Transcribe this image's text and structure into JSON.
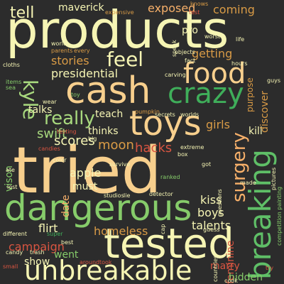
{
  "palette": {
    "cream": "#f6f5b4",
    "orange": "#f7b06a",
    "green": "#5fbf67",
    "red": "#d95541",
    "lime": "#a8d97e"
  },
  "words": [
    {
      "text": "products",
      "color": "#f6f5b4",
      "size": 72
    },
    {
      "text": "tried",
      "color": "#f7cf8d",
      "size": 90
    },
    {
      "text": "tested",
      "color": "#f6f5b4",
      "size": 58
    },
    {
      "text": "dangerous",
      "color": "#86cc6a",
      "size": 50
    },
    {
      "text": "cash",
      "color": "#f7cf8d",
      "size": 52
    },
    {
      "text": "unbreakable",
      "color": "#f6f5b4",
      "size": 38
    },
    {
      "text": "toys",
      "color": "#f7cf8d",
      "size": 48
    },
    {
      "text": "crazy",
      "color": "#3fae5a",
      "size": 40
    },
    {
      "text": "food",
      "color": "#f7cf8d",
      "size": 40
    },
    {
      "text": "breaking",
      "color": "#5fbf67",
      "size": 42
    },
    {
      "text": "feel",
      "color": "#f6f5b4",
      "size": 28
    },
    {
      "text": "surgery",
      "color": "#f7b06a",
      "size": 26
    },
    {
      "text": "really",
      "color": "#a8d97e",
      "size": 26
    },
    {
      "text": "kyle",
      "color": "#a8d97e",
      "size": 28
    },
    {
      "text": "tell",
      "color": "#f6f5b4",
      "size": 22
    },
    {
      "text": "hacks",
      "color": "#d95541",
      "size": 18
    },
    {
      "text": "moon",
      "color": "#d99b46",
      "size": 18
    },
    {
      "text": "scores",
      "color": "#f6f5b4",
      "size": 18
    },
    {
      "text": "swift",
      "color": "#a8d97e",
      "size": 18
    },
    {
      "text": "apple",
      "color": "#f6f5b4",
      "size": 16
    },
    {
      "text": "kiss",
      "color": "#f6f5b4",
      "size": 16
    },
    {
      "text": "boys",
      "color": "#f6f5b4",
      "size": 16
    },
    {
      "text": "presidential",
      "color": "#f6f5b4",
      "size": 16
    },
    {
      "text": "stories",
      "color": "#d99b46",
      "size": 16
    },
    {
      "text": "getting",
      "color": "#d99b46",
      "size": 16
    },
    {
      "text": "exposed",
      "color": "#f7b06a",
      "size": 16
    },
    {
      "text": "coming",
      "color": "#d99b46",
      "size": 16
    },
    {
      "text": "maverick",
      "color": "#f6f5b4",
      "size": 14
    },
    {
      "text": "thinks",
      "color": "#f6f5b4",
      "size": 14
    },
    {
      "text": "teach",
      "color": "#f6f5b4",
      "size": 14
    },
    {
      "text": "girls",
      "color": "#d99b46",
      "size": 16
    },
    {
      "text": "talks",
      "color": "#f6f5b4",
      "size": 14
    },
    {
      "text": "must",
      "color": "#f6f5b4",
      "size": 14
    },
    {
      "text": "date",
      "color": "#f7b06a",
      "size": 14
    },
    {
      "text": "homeless",
      "color": "#d99b46",
      "size": 16
    },
    {
      "text": "flirt",
      "color": "#f6f5b4",
      "size": 16
    },
    {
      "text": "talents",
      "color": "#f6f5b4",
      "size": 16
    },
    {
      "text": "feminine",
      "color": "#d95541",
      "size": 14
    },
    {
      "text": "campaign",
      "color": "#d95541",
      "size": 16
    },
    {
      "text": "went",
      "color": "#86cc6a",
      "size": 14
    },
    {
      "text": "show",
      "color": "#f6f5b4",
      "size": 14
    },
    {
      "text": "marry",
      "color": "#d95541",
      "size": 14
    },
    {
      "text": "hidden",
      "color": "#86cc6a",
      "size": 14
    },
    {
      "text": "kill",
      "color": "#f6f5b4",
      "size": 14
    },
    {
      "text": "discover",
      "color": "#d99b46",
      "size": 14
    },
    {
      "text": "purpose",
      "color": "#d99b46",
      "size": 12
    },
    {
      "text": "pro",
      "color": "#f6f5b4",
      "size": 14
    },
    {
      "text": "vison",
      "color": "#86cc6a",
      "size": 14
    },
    {
      "text": "expensive",
      "color": "#d99b46",
      "size": 8
    },
    {
      "text": "knows",
      "color": "#d99b46",
      "size": 8
    },
    {
      "text": "test",
      "color": "#d95541",
      "size": 8
    },
    {
      "text": "parents",
      "color": "#d99b46",
      "size": 8
    },
    {
      "text": "every",
      "color": "#d99b46",
      "size": 8
    },
    {
      "text": "objects",
      "color": "#f6f5b4",
      "size": 8
    },
    {
      "text": "speak",
      "color": "#f6f5b4",
      "size": 8
    },
    {
      "text": "worst",
      "color": "#f6f5b4",
      "size": 8
    },
    {
      "text": "life",
      "color": "#f6f5b4",
      "size": 8
    },
    {
      "text": "world",
      "color": "#f6f5b4",
      "size": 8
    },
    {
      "text": "cloths",
      "color": "#f6f5b4",
      "size": 8
    },
    {
      "text": "fact",
      "color": "#f6f5b4",
      "size": 8
    },
    {
      "text": "hours",
      "color": "#f6f5b4",
      "size": 8
    },
    {
      "text": "carving",
      "color": "#f6f5b4",
      "size": 8
    },
    {
      "text": "items",
      "color": "#86cc6a",
      "size": 8
    },
    {
      "text": "sea",
      "color": "#86cc6a",
      "size": 8
    },
    {
      "text": "toy",
      "color": "#86cc6a",
      "size": 8
    },
    {
      "text": "wear",
      "color": "#f6f5b4",
      "size": 8
    },
    {
      "text": "guys",
      "color": "#f6f5b4",
      "size": 8
    },
    {
      "text": "pumpkin",
      "color": "#d99b46",
      "size": 8
    },
    {
      "text": "secrets",
      "color": "#f6f5b4",
      "size": 8
    },
    {
      "text": "worlds",
      "color": "#f6f5b4",
      "size": 8
    },
    {
      "text": "testing",
      "color": "#d95541",
      "size": 8
    },
    {
      "text": "candies",
      "color": "#d95541",
      "size": 8
    },
    {
      "text": "big",
      "color": "#f6f5b4",
      "size": 8
    },
    {
      "text": "extreme",
      "color": "#f6f5b4",
      "size": 8
    },
    {
      "text": "box",
      "color": "#f6f5b4",
      "size": 8
    },
    {
      "text": "pictures",
      "color": "#f6f5b4",
      "size": 8
    },
    {
      "text": "ate",
      "color": "#f6f5b4",
      "size": 8
    },
    {
      "text": "color",
      "color": "#f6f5b4",
      "size": 8
    },
    {
      "text": "survive",
      "color": "#f6f5b4",
      "size": 8
    },
    {
      "text": "got",
      "color": "#f6f5b4",
      "size": 8
    },
    {
      "text": "competition painting",
      "color": "#86cc6a",
      "size": 8
    },
    {
      "text": "ranked",
      "color": "#86cc6a",
      "size": 8
    },
    {
      "text": "made",
      "color": "#f6f5b4",
      "size": 8
    },
    {
      "text": "questions",
      "color": "#f6f5b4",
      "size": 8
    },
    {
      "text": "lost",
      "color": "#f6f5b4",
      "size": 8
    },
    {
      "text": "studios",
      "color": "#f6f5b4",
      "size": 8
    },
    {
      "text": "lie",
      "color": "#f6f5b4",
      "size": 8
    },
    {
      "text": "detector",
      "color": "#f6f5b4",
      "size": 8
    },
    {
      "text": "cap",
      "color": "#f6f5b4",
      "size": 8
    },
    {
      "text": "guess",
      "color": "#f6f5b4",
      "size": 8
    },
    {
      "text": "different",
      "color": "#f6f5b4",
      "size": 8
    },
    {
      "text": "super",
      "color": "#3fae5a",
      "size": 8
    },
    {
      "text": "best",
      "color": "#f6f5b4",
      "size": 8
    },
    {
      "text": "candy",
      "color": "#f6f5b4",
      "size": 8
    },
    {
      "text": "trash",
      "color": "#f6f5b4",
      "size": 8
    },
    {
      "text": "countries",
      "color": "#f6f5b4",
      "size": 8
    },
    {
      "text": "small",
      "color": "#d95541",
      "size": 8
    },
    {
      "text": "around",
      "color": "#d95541",
      "size": 8
    },
    {
      "text": "took",
      "color": "#d95541",
      "size": 8
    },
    {
      "text": "cook",
      "color": "#f6f5b4",
      "size": 8
    },
    {
      "text": "try",
      "color": "#d95541",
      "size": 8
    }
  ]
}
